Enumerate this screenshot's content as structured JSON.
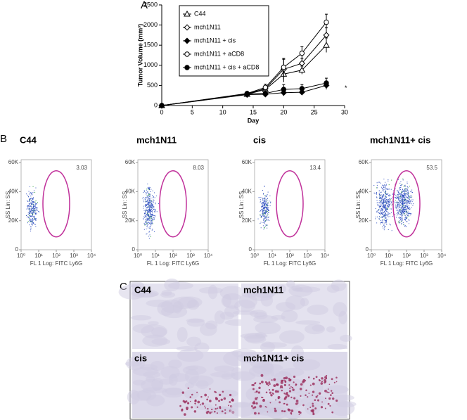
{
  "panel_labels": [
    "A",
    "B",
    "C"
  ],
  "chart_data": {
    "type": "line",
    "ylabel": "Tumor Volume (mm³)",
    "xlabel": "Day",
    "xlim": [
      0,
      30
    ],
    "xticks": [
      0,
      5,
      10,
      15,
      20,
      25,
      30
    ],
    "ylim": [
      0,
      2500
    ],
    "yticks": [
      0,
      500,
      1000,
      1500,
      2000,
      2500
    ],
    "x": [
      0,
      14,
      17,
      20,
      23,
      27
    ],
    "series": [
      {
        "name": "C44",
        "marker": "triangle-open",
        "color": "#000000",
        "values": [
          0,
          280,
          400,
          780,
          880,
          1500
        ],
        "errors": [
          0,
          30,
          60,
          200,
          100,
          180
        ]
      },
      {
        "name": "mch1N11",
        "marker": "diamond-open",
        "color": "#000000",
        "values": [
          0,
          290,
          420,
          900,
          1050,
          1750
        ],
        "errors": [
          0,
          30,
          70,
          250,
          120,
          180
        ]
      },
      {
        "name": "mch1N11 + cis",
        "marker": "diamond",
        "color": "#000000",
        "values": [
          0,
          270,
          280,
          320,
          330,
          500
        ],
        "errors": [
          0,
          30,
          50,
          80,
          60,
          100
        ]
      },
      {
        "name": "mch1N11 + aCD8",
        "marker": "circle-open",
        "color": "#000000",
        "values": [
          0,
          300,
          450,
          950,
          1300,
          2070
        ],
        "errors": [
          0,
          30,
          80,
          220,
          160,
          200
        ]
      },
      {
        "name": "mch1N11 + cis + aCD8",
        "marker": "circle",
        "color": "#000000",
        "values": [
          0,
          290,
          300,
          400,
          420,
          560
        ],
        "errors": [
          0,
          30,
          50,
          120,
          100,
          120
        ]
      }
    ],
    "annotation": "*"
  },
  "flow_axes": {
    "ylabel": "SS Lin: SS",
    "xlabel": "FL 1 Log: FITC Ly6G",
    "ylim": [
      0,
      62000
    ],
    "yticks": [
      0,
      {
        "value": 20000,
        "label": "20K"
      },
      {
        "value": 40000,
        "label": "40K"
      },
      {
        "value": 60000,
        "label": "60K"
      }
    ],
    "log_x": true,
    "xlim": [
      1,
      10000
    ],
    "xticks": [
      {
        "value": 1,
        "label": "10⁰"
      },
      {
        "value": 10,
        "label": "10¹"
      },
      {
        "value": 100,
        "label": "10²"
      },
      {
        "value": 1000,
        "label": "10³"
      },
      {
        "value": 10000,
        "label": "10⁴"
      }
    ]
  },
  "flow_panels": [
    {
      "title": "C44",
      "gate_percent": 3.03
    },
    {
      "title": "mch1N11",
      "gate_percent": 8.03
    },
    {
      "title": "cis",
      "gate_percent": 13.4
    },
    {
      "title": "mch1N11+ cis",
      "gate_percent": 53.5
    }
  ],
  "micrographs": [
    {
      "label": "C44"
    },
    {
      "label": "mch1N11"
    },
    {
      "label": "cis"
    },
    {
      "label": "mch1N11+ cis"
    }
  ]
}
